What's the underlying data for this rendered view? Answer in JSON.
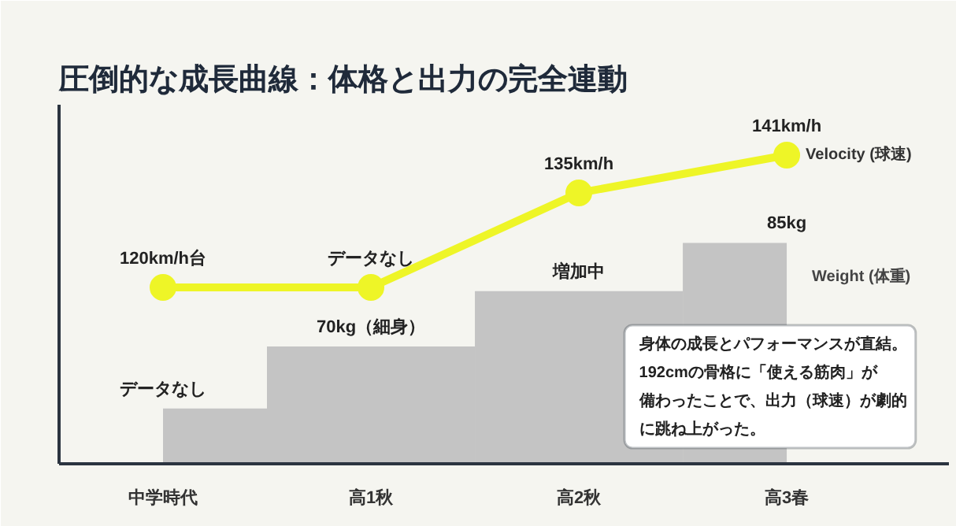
{
  "chart_data": {
    "type": "line",
    "title": "圧倒的な成長曲線：体格と出力の完全連動",
    "categories": [
      "中学時代",
      "高1秋",
      "高2秋",
      "高3春"
    ],
    "ylim": [
      92,
      149
    ],
    "y2lim": [
      53,
      105
    ],
    "tick_labels": "x",
    "marker": "circle",
    "series": [
      {
        "name": "Weight (体重)",
        "type": "bar",
        "axis": "y2",
        "color": "#c4c4c4",
        "values": [
          61,
          70,
          78,
          85
        ],
        "value_labels": [
          "データなし",
          "70kg（細身）",
          "増加中",
          "85kg"
        ]
      },
      {
        "name": "Velocity (球速)",
        "color": "#eef527",
        "values": [
          120,
          120,
          135,
          141
        ],
        "value_labels": [
          "120km/h台",
          "データなし",
          "135km/h",
          "141km/h"
        ]
      }
    ],
    "annotations": [
      "身体の成長とパフォーマンスが直結。",
      "192cmの骨格に「使える筋肉」が",
      "備わったことで、出力（球速）が劇的",
      "に跳ね上がった。"
    ]
  }
}
